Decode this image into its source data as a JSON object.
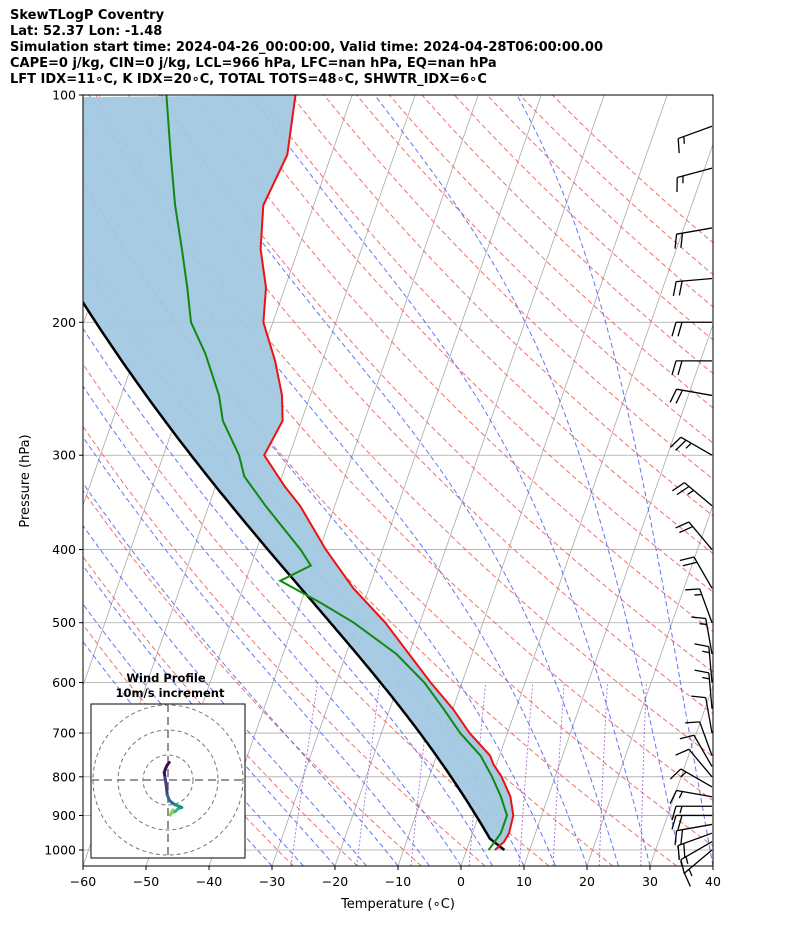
{
  "header": {
    "line1": "SkewTLogP Coventry",
    "line2": "Lat: 52.37   Lon: -1.48",
    "line3": "Simulation start time: 2024-04-26_00:00:00, Valid time: 2024-04-28T06:00:00.00",
    "line4": "CAPE=0 j/kg, CIN=0 j/kg, LCL=966 hPa, LFC=nan hPa, EQ=nan hPa",
    "line5": "LFT IDX=11∘C, K IDX=20∘C, TOTAL TOTS=48∘C, SHWTR_IDX=6∘C"
  },
  "inset": {
    "title": "Wind Profile",
    "subtitle": "10m/s increment"
  },
  "chart_data": {
    "type": "line",
    "xlabel": "Temperature (∘C)",
    "ylabel": "Pressure (hPa)",
    "xlim": [
      -60,
      40
    ],
    "ylim": [
      1050,
      100
    ],
    "y_scale": "log",
    "xticks": [
      -60,
      -50,
      -40,
      -30,
      -20,
      -10,
      0,
      10,
      20,
      30,
      40
    ],
    "xtick_labels": [
      "−60",
      "−50",
      "−40",
      "−30",
      "−20",
      "−10",
      "0",
      "10",
      "20",
      "30",
      "40"
    ],
    "yticks": [
      1000,
      900,
      800,
      700,
      600,
      500,
      400,
      300,
      200,
      100
    ],
    "ytick_labels": [
      "1000",
      "900",
      "800",
      "700",
      "600",
      "500",
      "400",
      "300",
      "200",
      "100"
    ],
    "grid": true,
    "colors": {
      "temperature": "#ee1111",
      "dewpoint": "#118811",
      "parcel": "#000000",
      "cape_fill": "#a2c8e0",
      "dry_adiabats": "#f06060",
      "moist_adiabats": "#4a5ef0",
      "mixing_ratio": "#9a4ad0",
      "isotherms": "#aaaaaa"
    },
    "series": [
      {
        "pressure": [
          1000,
          975,
          950,
          900,
          850,
          800,
          770,
          750,
          700,
          650,
          600,
          550,
          500,
          450,
          400,
          350,
          330,
          300,
          270,
          250,
          225,
          200,
          180,
          160,
          140,
          120,
          100
        ],
        "temperature": [
          4.5,
          5.5,
          5.8,
          5.5,
          4.0,
          1.5,
          -0.5,
          -1.5,
          -6.0,
          -10.0,
          -15.0,
          -20.0,
          -25.5,
          -32.5,
          -39.0,
          -45.5,
          -49.0,
          -54.0,
          -53.0,
          -54.5,
          -57.5,
          -61.5,
          -63.0,
          -66.0,
          -68.0,
          -67.0,
          -69.0
        ]
      },
      {
        "pressure": [
          1000,
          975,
          950,
          900,
          850,
          800,
          750,
          700,
          650,
          600,
          550,
          500,
          470,
          440,
          420,
          400,
          350,
          320,
          300,
          270,
          250,
          220,
          200,
          180,
          160,
          140,
          120,
          100
        ],
        "dewpoint": [
          3.5,
          4.0,
          4.5,
          4.5,
          2.5,
          0.0,
          -3.0,
          -7.5,
          -11.5,
          -16.0,
          -22.0,
          -30.5,
          -37.0,
          -44.5,
          -40.5,
          -43.0,
          -51.0,
          -56.0,
          -58.0,
          -62.5,
          -64.5,
          -69.0,
          -73.0,
          -75.5,
          -78.5,
          -82.0,
          -85.5,
          -89.5
        ]
      }
    ],
    "wind_profile": {
      "pressure": [
        1000,
        950,
        900,
        850,
        800,
        750,
        700,
        650,
        600,
        550,
        500,
        450,
        400,
        350,
        300,
        250,
        200,
        150,
        100
      ],
      "u": [
        0.5,
        -0.3,
        -1.0,
        -1.5,
        -1.2,
        -0.8,
        -0.5,
        -0.3,
        0.5,
        1.5,
        3.0,
        4.5,
        5.5,
        4.0,
        3.0,
        1.5,
        1.0,
        1.3,
        2.0
      ],
      "v": [
        -7.0,
        -6.0,
        -4.5,
        -3.0,
        -1.0,
        1.5,
        4.0,
        6.0,
        8.0,
        9.0,
        10.0,
        10.5,
        11.0,
        11.5,
        12.5,
        13.0,
        14.0,
        13.0,
        12.0
      ]
    },
    "wind_barbs": {
      "pressure": [
        1000,
        975,
        950,
        925,
        900,
        875,
        850,
        825,
        800,
        775,
        750,
        700,
        650,
        600,
        550,
        500,
        450,
        400,
        350,
        300,
        250,
        225,
        200,
        175,
        150,
        125,
        110
      ],
      "speed_kt": [
        15,
        15,
        20,
        20,
        20,
        15,
        15,
        15,
        10,
        10,
        10,
        10,
        15,
        15,
        15,
        15,
        20,
        20,
        25,
        25,
        20,
        20,
        20,
        20,
        20,
        15,
        15
      ],
      "direction_deg": [
        230,
        240,
        250,
        260,
        270,
        270,
        280,
        300,
        320,
        330,
        340,
        350,
        355,
        355,
        350,
        340,
        330,
        320,
        310,
        300,
        280,
        270,
        270,
        265,
        260,
        255,
        250
      ]
    }
  }
}
